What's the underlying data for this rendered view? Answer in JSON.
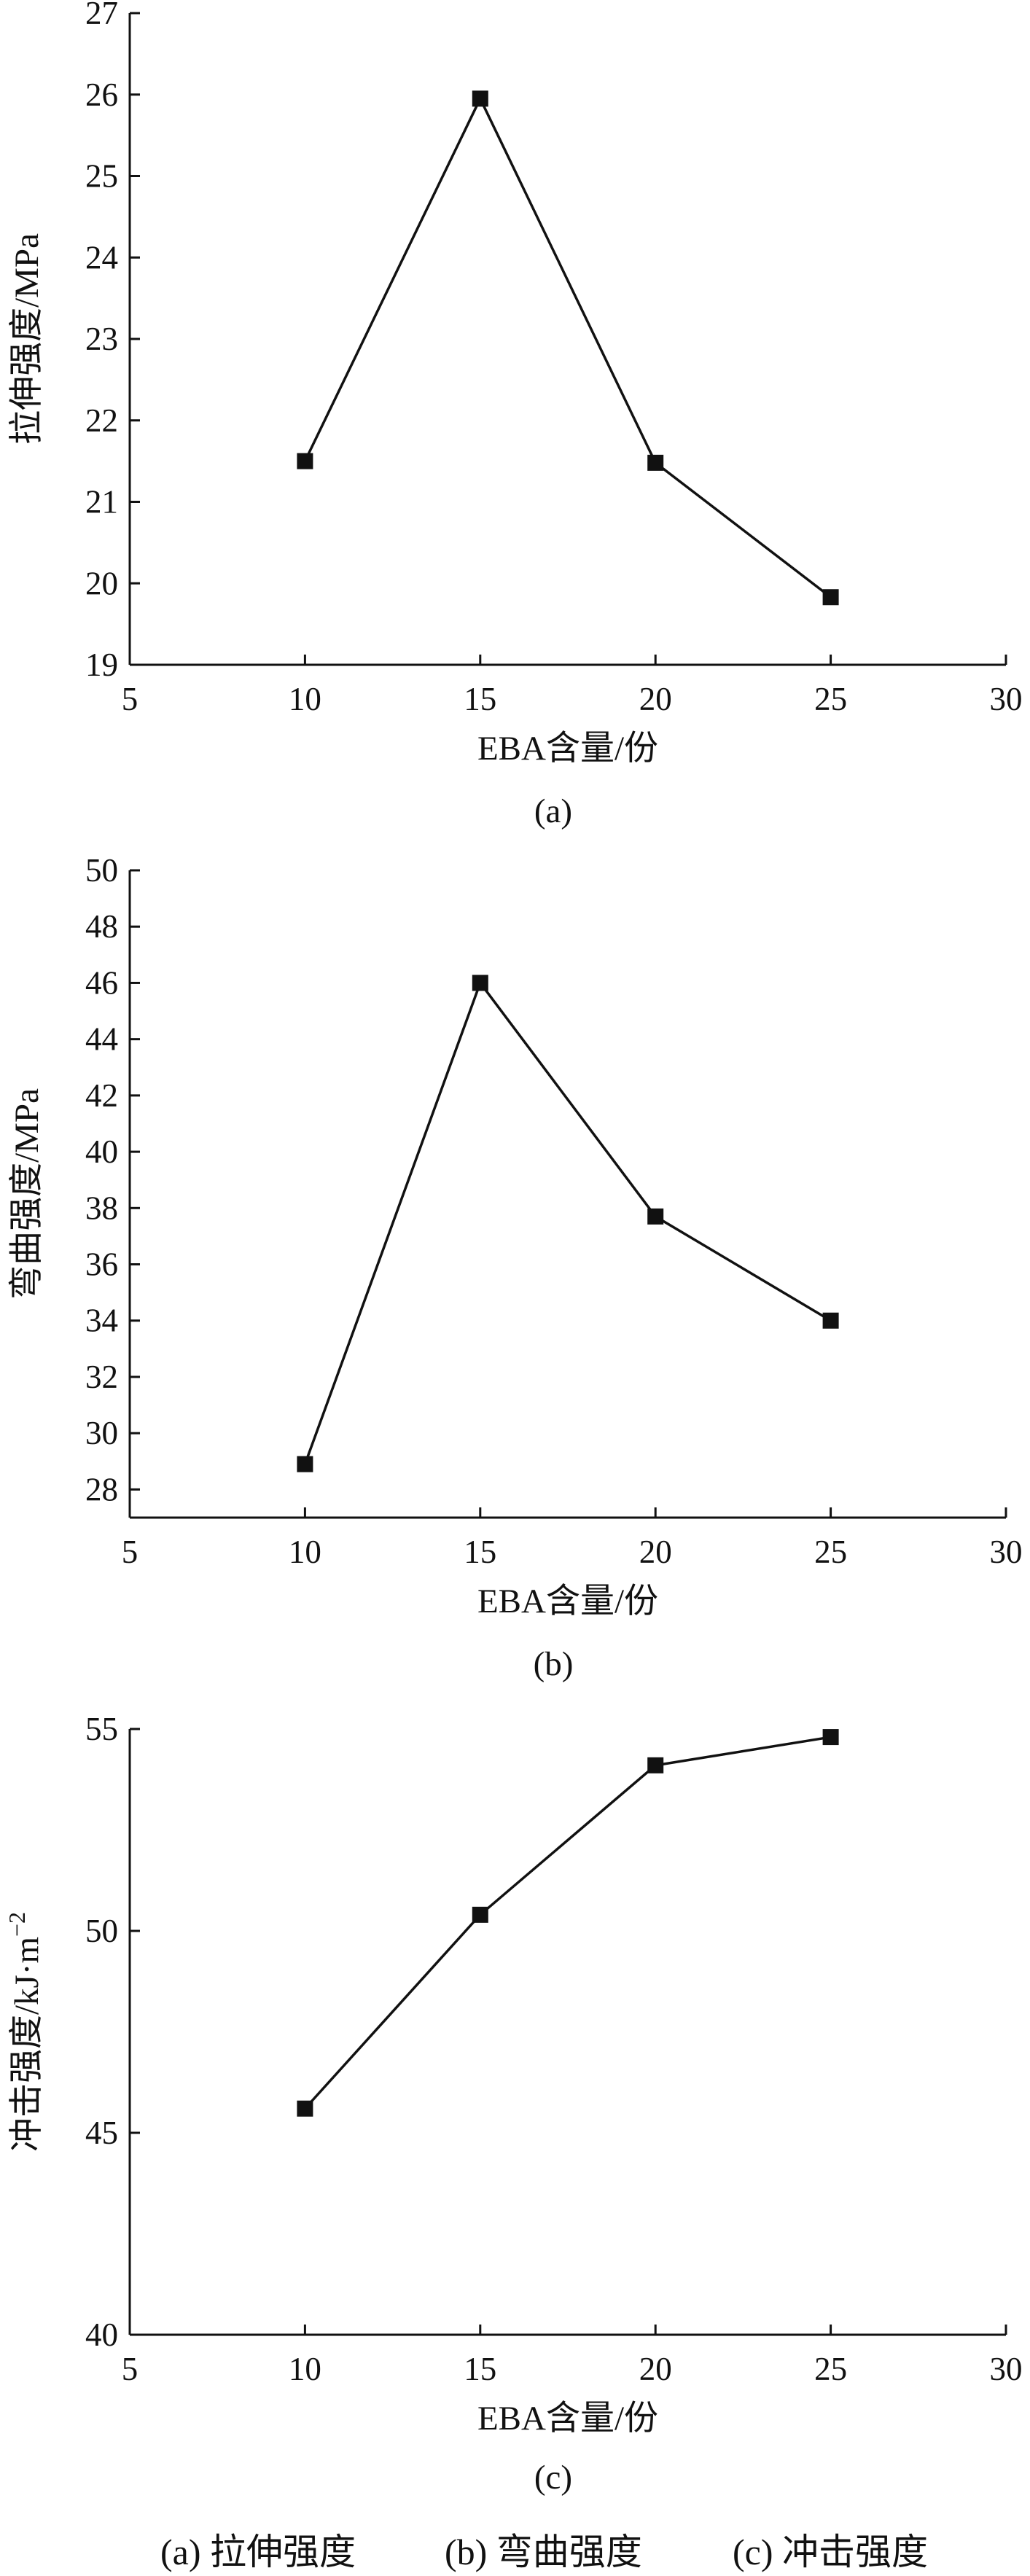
{
  "chart_data": [
    {
      "type": "line",
      "xlabel": "EBA含量/份",
      "ylabel": "拉伸强度/MPa",
      "panel_label": "(a)",
      "xlim": [
        5,
        30
      ],
      "ylim": [
        19,
        27
      ],
      "xticks": [
        "5",
        "10",
        "15",
        "20",
        "25",
        "30"
      ],
      "yticks": [
        "19",
        "20",
        "21",
        "22",
        "23",
        "24",
        "25",
        "26",
        "27"
      ],
      "grid": false,
      "marker": "square",
      "x": [
        10,
        15,
        20,
        25
      ],
      "y": [
        21.5,
        25.95,
        21.48,
        19.83
      ]
    },
    {
      "type": "line",
      "xlabel": "EBA含量/份",
      "ylabel": "弯曲强度/MPa",
      "panel_label": "(b)",
      "xlim": [
        5,
        30
      ],
      "ylim": [
        27,
        50
      ],
      "xticks": [
        "5",
        "10",
        "15",
        "20",
        "25",
        "30"
      ],
      "yticks": [
        "28",
        "30",
        "32",
        "34",
        "36",
        "38",
        "40",
        "42",
        "44",
        "46",
        "48",
        "50"
      ],
      "grid": false,
      "marker": "square",
      "x": [
        10,
        15,
        20,
        25
      ],
      "y": [
        28.9,
        46.0,
        37.7,
        34.0
      ]
    },
    {
      "type": "line",
      "xlabel": "EBA含量/份",
      "ylabel": "冲击强度/kJ·m",
      "ylabel_sup": "−2",
      "panel_label": "(c)",
      "xlim": [
        5,
        30
      ],
      "ylim": [
        40,
        55
      ],
      "xticks": [
        "5",
        "10",
        "15",
        "20",
        "25",
        "30"
      ],
      "yticks": [
        "40",
        "45",
        "50",
        "55"
      ],
      "grid": false,
      "marker": "square",
      "x": [
        10,
        15,
        20,
        25
      ],
      "y": [
        45.6,
        50.4,
        54.1,
        54.8
      ]
    }
  ],
  "caption": [
    "(a) 拉伸强度",
    "(b) 弯曲强度",
    "(c) 冲击强度"
  ]
}
